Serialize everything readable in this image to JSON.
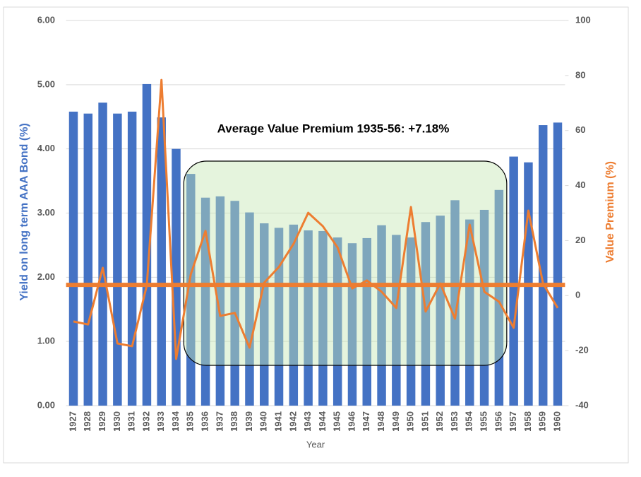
{
  "chart_data": {
    "type": "bar_line",
    "annotation": "Average Value Premium 1935-56: +7.18%",
    "x_label": "Year",
    "y_label": "Yield on long term AAA Bond (%)",
    "y2_label": "Value Premium (%)",
    "categories": [
      "1927",
      "1928",
      "1929",
      "1930",
      "1931",
      "1932",
      "1933",
      "1934",
      "1935",
      "1936",
      "1937",
      "1938",
      "1939",
      "1940",
      "1941",
      "1942",
      "1943",
      "1944",
      "1945",
      "1946",
      "1947",
      "1948",
      "1949",
      "1950",
      "1951",
      "1952",
      "1953",
      "1954",
      "1955",
      "1956",
      "1957",
      "1958",
      "1959",
      "1960"
    ],
    "series": [
      {
        "type": "bar",
        "color": "#4472c4",
        "values": [
          4.58,
          4.55,
          4.72,
          4.55,
          4.58,
          5.01,
          4.49,
          4.0,
          3.61,
          3.24,
          3.26,
          3.19,
          3.01,
          2.84,
          2.77,
          2.82,
          2.73,
          2.72,
          2.62,
          2.53,
          2.61,
          2.81,
          2.66,
          2.62,
          2.86,
          2.96,
          3.2,
          2.9,
          3.05,
          3.36,
          3.88,
          3.79,
          4.37,
          4.41
        ]
      },
      {
        "type": "line",
        "axis": "y2",
        "color": "#ed7d31",
        "values": [
          -9.4,
          -10.5,
          10.1,
          -17.4,
          -18.4,
          3.7,
          78.4,
          -23,
          7.8,
          23.5,
          -7.4,
          -6.3,
          -18.9,
          4.7,
          10.4,
          18.8,
          30.1,
          25.2,
          17.5,
          2.6,
          5.5,
          1.4,
          -4.5,
          32.2,
          -5.8,
          4.4,
          -8.4,
          25.8,
          1.4,
          -2.2,
          -11.7,
          30.9,
          4.4,
          -4.5
        ]
      }
    ],
    "reference_line": {
      "value": 3.9,
      "axis": "y2",
      "color": "#ed7d31"
    },
    "highlight": {
      "from": "1935",
      "to": "1956"
    },
    "ylim": [
      0,
      6
    ],
    "yticks": [
      {
        "value": 0,
        "label": "0.00"
      },
      {
        "value": 1,
        "label": "1.00"
      },
      {
        "value": 2,
        "label": "2.00"
      },
      {
        "value": 3,
        "label": "3.00"
      },
      {
        "value": 4,
        "label": "4.00"
      },
      {
        "value": 5,
        "label": "5.00"
      },
      {
        "value": 6,
        "label": "6.00"
      }
    ],
    "y2lim": [
      -40,
      100
    ],
    "y2ticks": [
      -40,
      -20,
      0,
      20,
      40,
      60,
      80,
      100
    ],
    "grid": true
  }
}
